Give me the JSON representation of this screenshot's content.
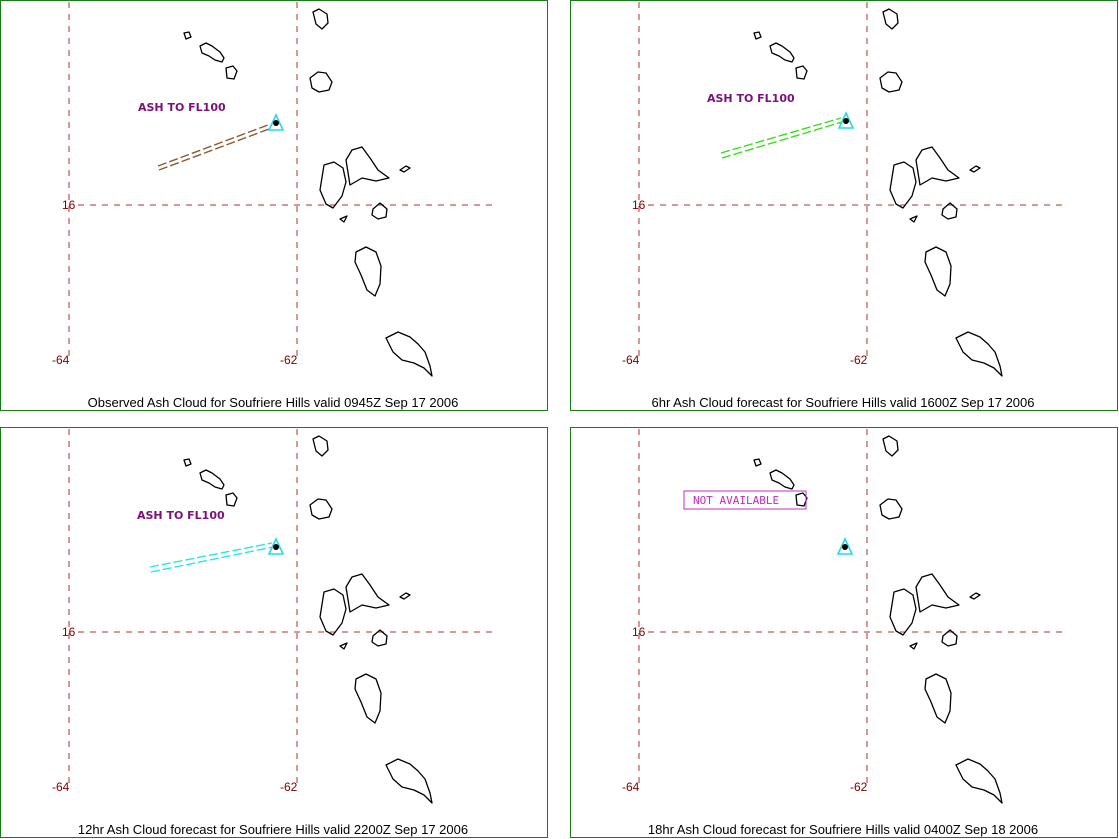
{
  "colors": {
    "frame": "#1a7a1a",
    "grid": "#b23030",
    "tick_text": "#7a0000",
    "coast": "#000000",
    "label": "#7a127a",
    "volcano": "#28d8e8",
    "not_available": "#c02cc0"
  },
  "axis_labels": {
    "lon_left": "-64",
    "lon_right": "-62",
    "lat": "16"
  },
  "panels": [
    {
      "caption": "Observed Ash Cloud for Soufriere  Hills valid 0945Z Sep 17 2006",
      "ash_label": "ASH TO FL100",
      "plume_color": "#8a5a32",
      "status": ""
    },
    {
      "caption": "6hr Ash Cloud forecast for Soufriere  Hills valid 1600Z Sep 17 2006",
      "ash_label": "ASH TO FL100",
      "plume_color": "#3cdc1e",
      "status": ""
    },
    {
      "caption": "12hr Ash Cloud forecast for Soufriere  Hills valid 2200Z Sep 17 2006",
      "ash_label": "ASH TO FL100",
      "plume_color": "#28e6e6",
      "status": ""
    },
    {
      "caption": "18hr Ash Cloud forecast for Soufriere  Hills valid 0400Z Sep 18 2006",
      "ash_label": "",
      "plume_color": "",
      "status": "NOT AVAILABLE"
    }
  ]
}
